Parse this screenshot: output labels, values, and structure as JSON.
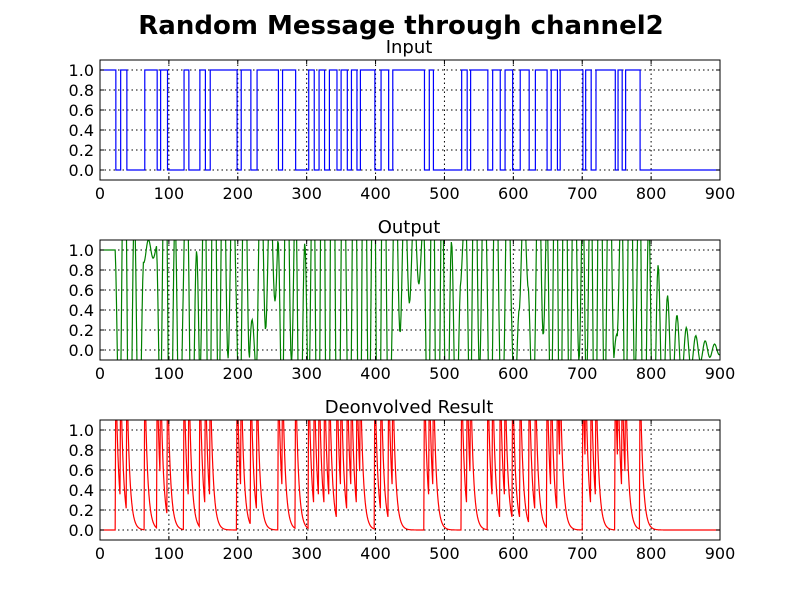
{
  "chart_data": [
    {
      "type": "line",
      "suptitle": "Random Message through channel2",
      "title": "Input",
      "xlim": [
        0,
        900
      ],
      "ylim": [
        -0.1,
        1.1
      ],
      "xticks": [
        0,
        100,
        200,
        300,
        400,
        500,
        600,
        700,
        800,
        900
      ],
      "xtick_labels": [
        "0",
        "100",
        "200",
        "300",
        "400",
        "500",
        "600",
        "700",
        "800",
        "900"
      ],
      "yticks": [
        0.0,
        0.2,
        0.4,
        0.6,
        0.8,
        1.0
      ],
      "ytick_labels": [
        "0.0",
        "0.2",
        "0.4",
        "0.6",
        "0.8",
        "1.0"
      ],
      "grid": true,
      "series": [
        {
          "name": "input",
          "color": "#0000ff",
          "kind": "step",
          "high_intervals": [
            [
              0,
              22
            ],
            [
              30,
              38
            ],
            [
              65,
              82
            ],
            [
              88,
              97
            ],
            [
              122,
              128
            ],
            [
              145,
              152
            ],
            [
              160,
              198
            ],
            [
              205,
              218
            ],
            [
              228,
              258
            ],
            [
              265,
              283
            ],
            [
              303,
              310
            ],
            [
              318,
              325
            ],
            [
              333,
              343
            ],
            [
              350,
              358
            ],
            [
              365,
              372
            ],
            [
              378,
              398
            ],
            [
              408,
              418
            ],
            [
              425,
              470
            ],
            [
              478,
              483
            ],
            [
              525,
              532
            ],
            [
              538,
              562
            ],
            [
              570,
              580
            ],
            [
              588,
              598
            ],
            [
              610,
              622
            ],
            [
              632,
              648
            ],
            [
              655,
              663
            ],
            [
              668,
              700
            ],
            [
              705,
              712
            ],
            [
              720,
              747
            ],
            [
              752,
              757
            ],
            [
              763,
              783
            ]
          ]
        }
      ]
    },
    {
      "type": "line",
      "title": "Output",
      "xlim": [
        0,
        900
      ],
      "ylim": [
        -0.1,
        1.1
      ],
      "xticks": [
        0,
        100,
        200,
        300,
        400,
        500,
        600,
        700,
        800,
        900
      ],
      "xtick_labels": [
        "0",
        "100",
        "200",
        "300",
        "400",
        "500",
        "600",
        "700",
        "800",
        "900"
      ],
      "yticks": [
        0.0,
        0.2,
        0.4,
        0.6,
        0.8,
        1.0
      ],
      "ytick_labels": [
        "0.0",
        "0.2",
        "0.4",
        "0.6",
        "0.8",
        "1.0"
      ],
      "grid": true,
      "series": [
        {
          "name": "output",
          "color": "#008000",
          "kind": "ringing",
          "derived_from": "input"
        }
      ]
    },
    {
      "type": "line",
      "title": "Deonvolved Result",
      "xlim": [
        0,
        900
      ],
      "ylim": [
        -0.1,
        1.1
      ],
      "xticks": [
        0,
        100,
        200,
        300,
        400,
        500,
        600,
        700,
        800,
        900
      ],
      "xtick_labels": [
        "0",
        "100",
        "200",
        "300",
        "400",
        "500",
        "600",
        "700",
        "800",
        "900"
      ],
      "yticks": [
        0.0,
        0.2,
        0.4,
        0.6,
        0.8,
        1.0
      ],
      "ytick_labels": [
        "0.0",
        "0.2",
        "0.4",
        "0.6",
        "0.8",
        "1.0"
      ],
      "grid": true,
      "series": [
        {
          "name": "deconvolved",
          "color": "#ff0000",
          "kind": "spikes",
          "derived_from": "input"
        }
      ]
    }
  ]
}
